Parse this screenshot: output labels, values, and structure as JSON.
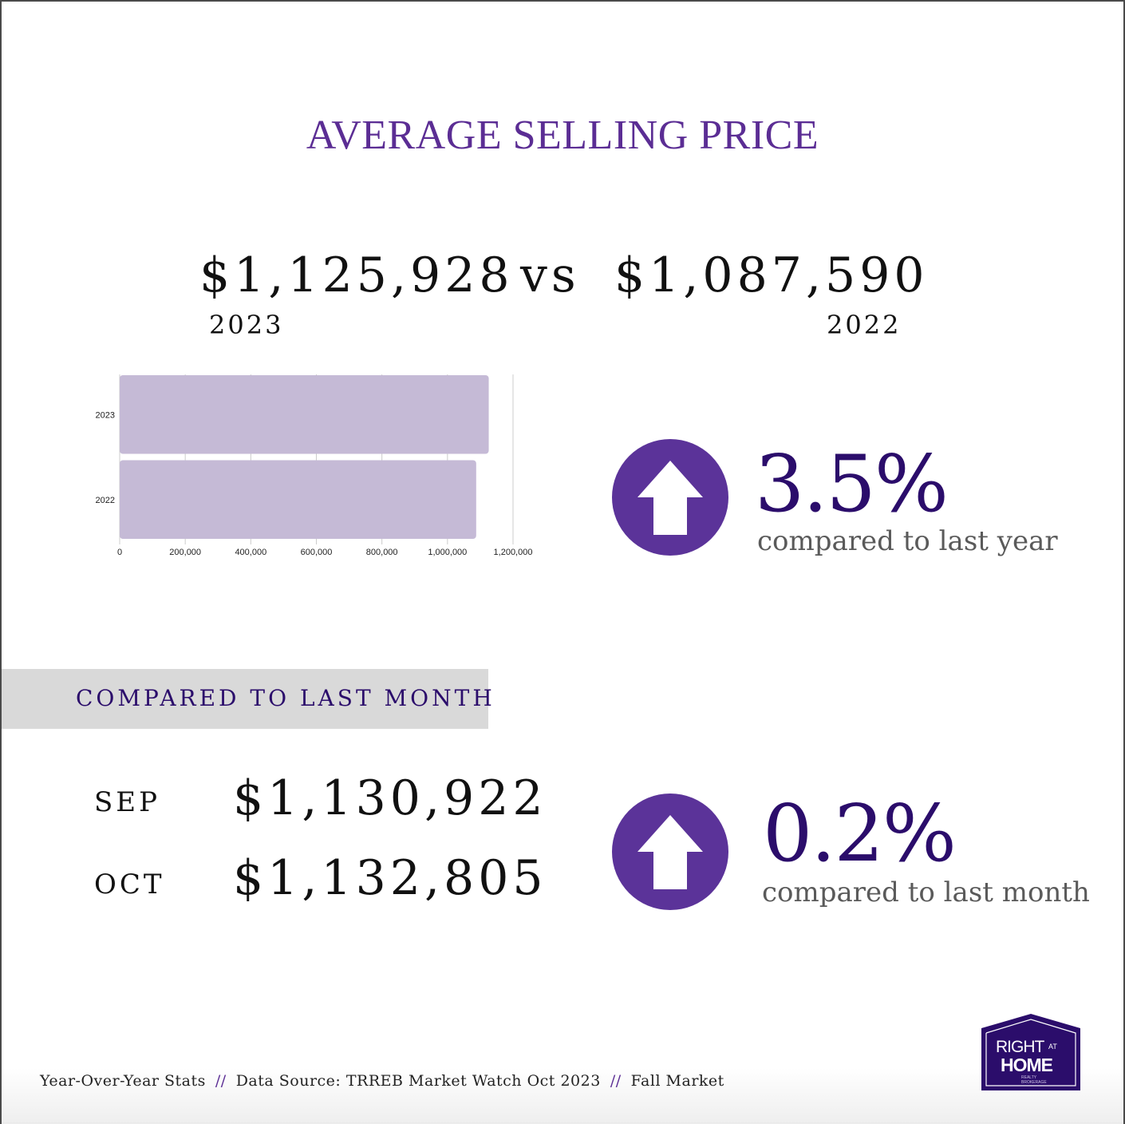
{
  "header": {
    "title": "AVERAGE SELLING PRICE"
  },
  "yearly": {
    "price_2023": "$1,125,928",
    "vs_label": "vs",
    "price_2022": "$1,087,590",
    "year_2023": "2023",
    "year_2022": "2022"
  },
  "chart_data": {
    "type": "bar",
    "orientation": "horizontal",
    "categories": [
      "2023",
      "2022"
    ],
    "values": [
      1125928,
      1087590
    ],
    "xlim": [
      0,
      1200000
    ],
    "x_ticks": [
      "0",
      "200,000",
      "400,000",
      "600,000",
      "800,000",
      "1,000,000",
      "1,200,000"
    ],
    "x_tick_values": [
      0,
      200000,
      400000,
      600000,
      800000,
      1000000,
      1200000
    ],
    "bar_color": "#c5bad6",
    "grid": true,
    "title": "",
    "xlabel": "",
    "ylabel": ""
  },
  "year_change": {
    "percent": "3.5%",
    "note": "compared to last year",
    "direction": "up"
  },
  "monthly": {
    "band_label": "COMPARED TO LAST MONTH",
    "sep_label": "SEP",
    "sep_price": "$1,130,922",
    "oct_label": "OCT",
    "oct_price": "$1,132,805"
  },
  "month_change": {
    "percent": "0.2%",
    "note": "compared to last month",
    "direction": "up"
  },
  "footer": {
    "part1": "Year-Over-Year Stats",
    "separator": "//",
    "part2": "Data Source: TRREB Market Watch Oct 2023",
    "part3": "Fall Market"
  },
  "logo": {
    "line1": "RIGHT",
    "line1_small": "AT",
    "line2": "HOME",
    "line3_a": "REALTY",
    "line3_b": "BROKERAGE"
  },
  "colors": {
    "brand_purple": "#5b2d94",
    "deep_purple": "#2b0d6b",
    "circle_purple": "#5b3399",
    "bar_fill": "#c5bad6",
    "band_gray": "#d9d9d9"
  },
  "icons": {
    "year_arrow": "arrow-up-icon",
    "month_arrow": "arrow-up-icon"
  }
}
